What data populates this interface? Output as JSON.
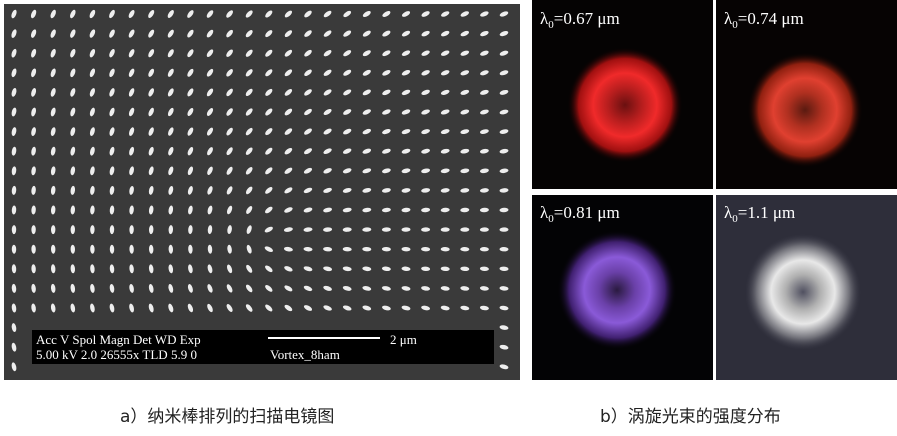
{
  "sem": {
    "info_line1": "Acc V  Spol Magn  Det WD Exp",
    "info_line2": "5.00 kV 2.0 26555x TLD 5.9 0",
    "scale": "2 μm",
    "sample": "Vortex_8ham"
  },
  "panels": [
    {
      "symbol": "λ",
      "sub": "0",
      "text": "=0.67 μm"
    },
    {
      "symbol": "λ",
      "sub": "0",
      "text": "=0.74 μm"
    },
    {
      "symbol": "λ",
      "sub": "0",
      "text": "=0.81 μm"
    },
    {
      "symbol": "λ",
      "sub": "0",
      "text": "=1.1 μm"
    }
  ],
  "captions": [
    "a）纳米棒排列的扫描电镜图",
    "b）涡旋光束的强度分布"
  ]
}
